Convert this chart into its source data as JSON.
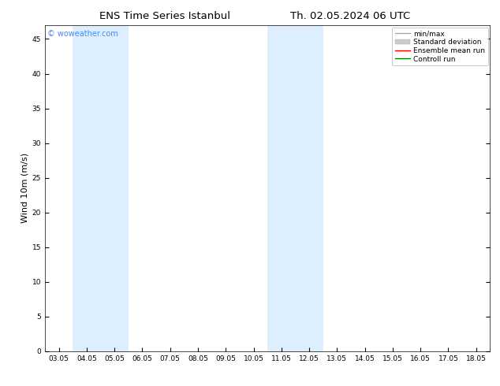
{
  "title_left": "ENS Time Series Istanbul",
  "title_right": "Th. 02.05.2024 06 UTC",
  "ylabel": "Wind 10m (m/s)",
  "watermark": "© woweather.com",
  "x_tick_labels": [
    "03.05",
    "04.05",
    "05.05",
    "06.05",
    "07.05",
    "08.05",
    "09.05",
    "10.05",
    "11.05",
    "12.05",
    "13.05",
    "14.05",
    "15.05",
    "16.05",
    "17.05",
    "18.05"
  ],
  "x_tick_positions": [
    0,
    1,
    2,
    3,
    4,
    5,
    6,
    7,
    8,
    9,
    10,
    11,
    12,
    13,
    14,
    15
  ],
  "ylim": [
    0,
    47
  ],
  "yticks": [
    0,
    5,
    10,
    15,
    20,
    25,
    30,
    35,
    40,
    45
  ],
  "bg_color": "#ffffff",
  "plot_bg_color": "#ffffff",
  "shaded_regions": [
    {
      "x_start": 1.0,
      "x_end": 3.0,
      "color": "#ddeeff"
    },
    {
      "x_start": 8.0,
      "x_end": 10.0,
      "color": "#ddeeff"
    }
  ],
  "font_color": "#000000",
  "title_fontsize": 9.5,
  "tick_fontsize": 6.5,
  "ylabel_fontsize": 8,
  "watermark_color": "#4488ff",
  "watermark_fontsize": 7,
  "legend_fontsize": 6.5
}
